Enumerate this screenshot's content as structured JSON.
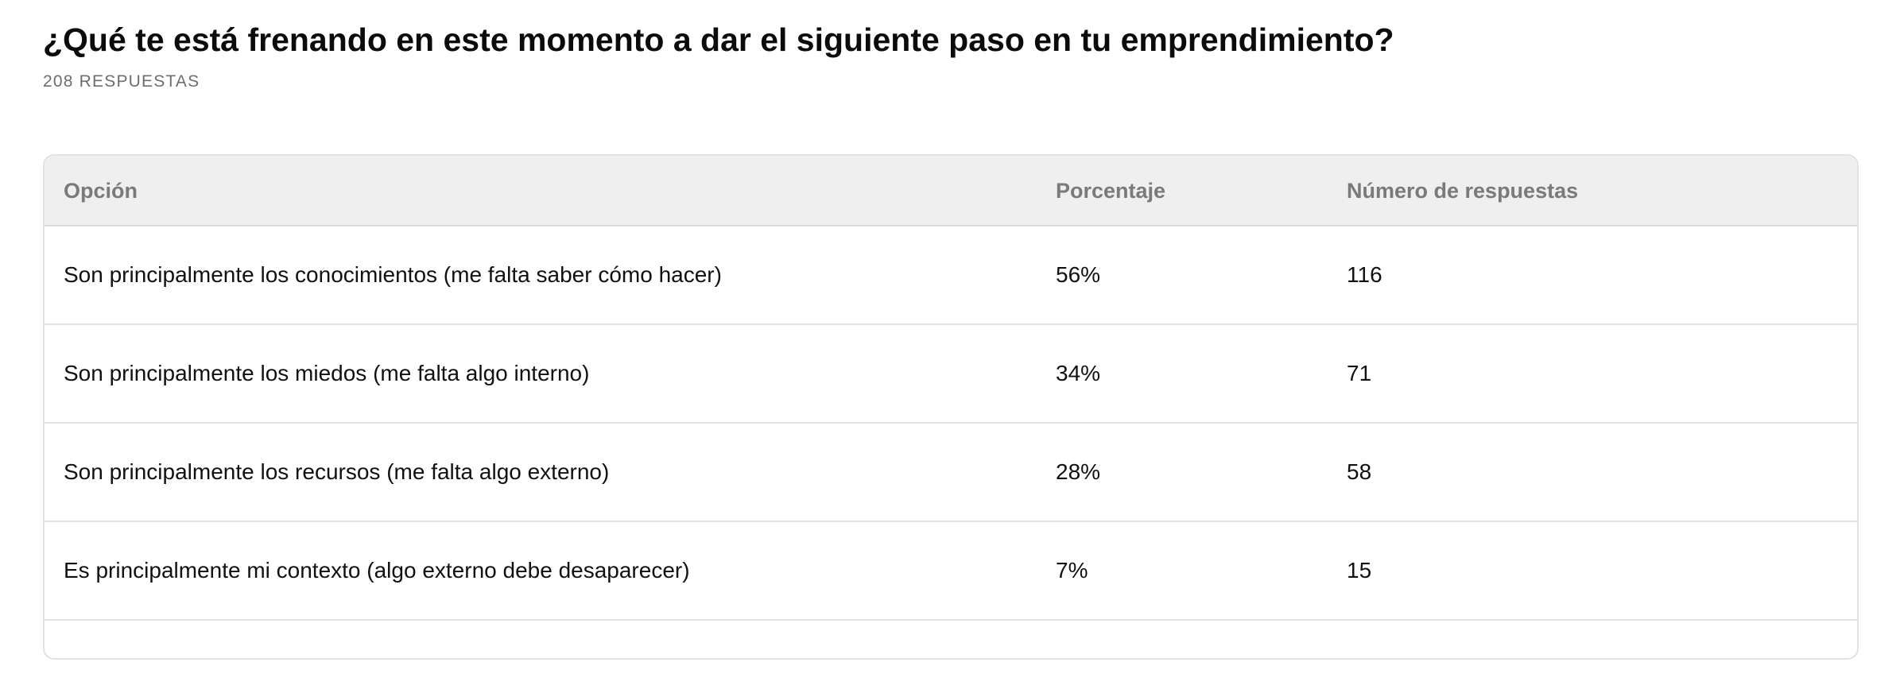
{
  "question": {
    "title": "¿Qué te está frenando en este momento a dar el siguiente paso en tu emprendimiento?",
    "response_count": "208 RESPUESTAS"
  },
  "table": {
    "headers": {
      "option": "Opción",
      "percentage": "Porcentaje",
      "count": "Número de respuestas"
    },
    "rows": [
      {
        "option": "Son principalmente los conocimientos (me falta saber cómo hacer)",
        "percentage": "56%",
        "count": "116"
      },
      {
        "option": "Son principalmente los miedos (me falta algo interno)",
        "percentage": "34%",
        "count": "71"
      },
      {
        "option": "Son principalmente los recursos (me falta algo externo)",
        "percentage": "28%",
        "count": "58"
      },
      {
        "option": "Es principalmente mi contexto (algo externo debe desaparecer)",
        "percentage": "7%",
        "count": "15"
      }
    ]
  }
}
